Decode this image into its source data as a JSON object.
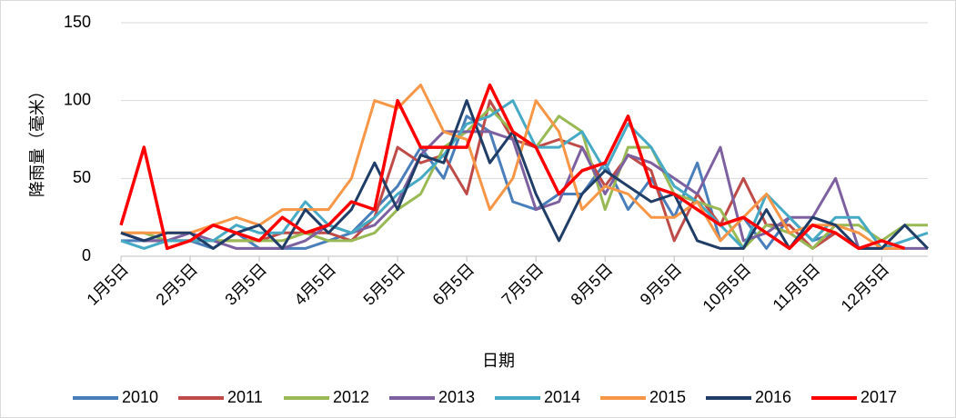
{
  "chart_data": {
    "type": "line",
    "x_label": "日期",
    "y_label": "降雨量（毫米）",
    "categories": [
      "1月5日",
      null,
      null,
      "2月5日",
      null,
      null,
      "3月5日",
      null,
      null,
      "4月5日",
      null,
      null,
      "5月5日",
      null,
      null,
      "6月5日",
      null,
      null,
      "7月5日",
      null,
      null,
      "8月5日",
      null,
      null,
      "9月5日",
      null,
      null,
      "10月5日",
      null,
      null,
      "11月5日",
      null,
      null,
      "12月5日",
      null,
      null
    ],
    "ylim": [
      0,
      150
    ],
    "yticks": [
      0,
      50,
      100,
      150
    ],
    "grid": true,
    "legend": "bottom",
    "series": [
      {
        "name": "2010",
        "color": "#4a7ebb",
        "values": [
          10,
          10,
          10,
          10,
          5,
          15,
          5,
          5,
          5,
          10,
          15,
          30,
          45,
          70,
          50,
          90,
          80,
          35,
          30,
          40,
          40,
          60,
          30,
          50,
          25,
          60,
          10,
          25,
          5,
          25,
          10,
          15,
          5,
          5,
          5,
          null
        ]
      },
      {
        "name": "2011",
        "color": "#be4b48",
        "values": [
          15,
          10,
          10,
          10,
          10,
          10,
          10,
          15,
          15,
          15,
          10,
          25,
          70,
          60,
          65,
          40,
          100,
          75,
          70,
          75,
          70,
          45,
          65,
          55,
          10,
          40,
          20,
          50,
          20,
          20,
          5,
          15,
          5,
          5,
          5,
          null
        ]
      },
      {
        "name": "2012",
        "color": "#98b954",
        "values": [
          15,
          15,
          10,
          10,
          10,
          10,
          10,
          10,
          15,
          10,
          10,
          15,
          30,
          40,
          70,
          80,
          95,
          80,
          70,
          90,
          80,
          30,
          70,
          70,
          40,
          35,
          30,
          5,
          20,
          15,
          5,
          20,
          20,
          10,
          20,
          20
        ]
      },
      {
        "name": "2013",
        "color": "#7d60a0",
        "values": [
          15,
          10,
          10,
          15,
          10,
          5,
          5,
          5,
          10,
          20,
          15,
          20,
          35,
          65,
          80,
          80,
          80,
          75,
          30,
          35,
          70,
          40,
          65,
          60,
          50,
          40,
          70,
          10,
          15,
          25,
          25,
          50,
          5,
          5,
          5,
          5
        ]
      },
      {
        "name": "2014",
        "color": "#46aac5",
        "values": [
          10,
          5,
          10,
          10,
          10,
          20,
          15,
          15,
          35,
          20,
          15,
          25,
          40,
          50,
          65,
          85,
          90,
          100,
          70,
          70,
          80,
          55,
          85,
          70,
          45,
          35,
          20,
          5,
          40,
          25,
          10,
          25,
          25,
          5,
          10,
          15
        ]
      },
      {
        "name": "2015",
        "color": "#f79646",
        "values": [
          15,
          15,
          15,
          15,
          20,
          25,
          20,
          30,
          30,
          30,
          50,
          100,
          95,
          110,
          80,
          75,
          30,
          50,
          100,
          80,
          30,
          45,
          40,
          25,
          25,
          35,
          10,
          25,
          40,
          15,
          20,
          20,
          15,
          5,
          5,
          null
        ]
      },
      {
        "name": "2016",
        "color": "#1f3d66",
        "values": [
          15,
          10,
          15,
          15,
          5,
          15,
          20,
          5,
          30,
          15,
          30,
          60,
          30,
          65,
          60,
          100,
          60,
          80,
          40,
          10,
          40,
          55,
          45,
          35,
          40,
          10,
          5,
          5,
          30,
          5,
          25,
          20,
          5,
          5,
          20,
          5
        ]
      },
      {
        "name": "2017",
        "color": "#ff0000",
        "values": [
          20,
          70,
          5,
          10,
          20,
          15,
          10,
          25,
          15,
          20,
          35,
          30,
          100,
          70,
          70,
          70,
          110,
          80,
          70,
          40,
          55,
          60,
          90,
          45,
          40,
          30,
          20,
          25,
          15,
          5,
          20,
          15,
          5,
          10,
          5,
          null
        ]
      }
    ]
  }
}
